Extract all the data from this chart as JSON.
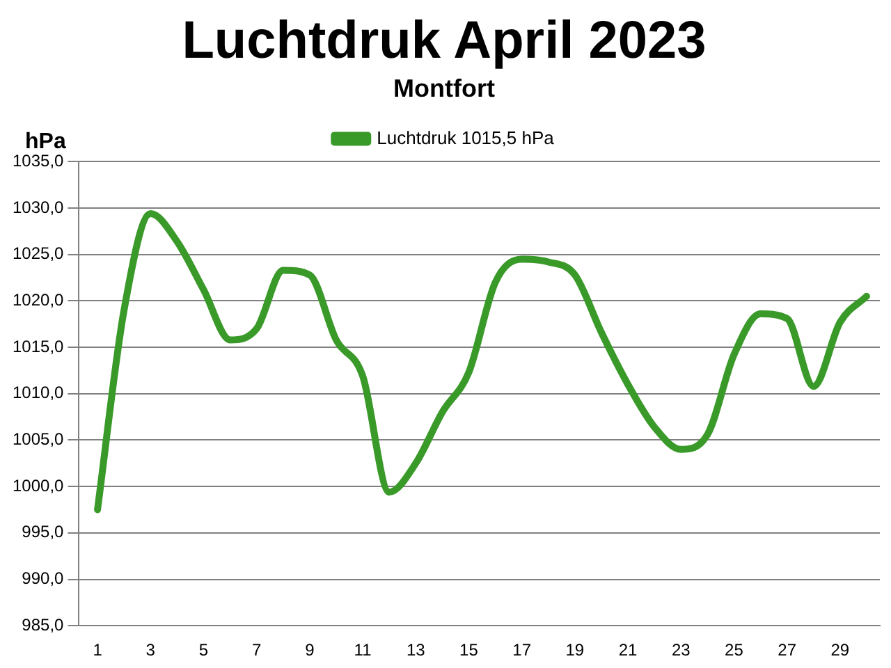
{
  "chart_data": {
    "type": "line",
    "title": "Luchtdruk April 2023",
    "subtitle": "Montfort",
    "ylabel": "hPa",
    "x": [
      1,
      2,
      3,
      4,
      5,
      6,
      7,
      8,
      9,
      10,
      11,
      12,
      13,
      14,
      15,
      16,
      17,
      18,
      19,
      20,
      21,
      22,
      23,
      24,
      25,
      26,
      27,
      28,
      29,
      30
    ],
    "xlim": [
      0.3,
      30.5
    ],
    "xticks": [
      1,
      3,
      5,
      7,
      9,
      11,
      13,
      15,
      17,
      19,
      21,
      23,
      25,
      27,
      29
    ],
    "series": [
      {
        "name": "Luchtdruk 1015,5 hPa",
        "color": "#3a9a29",
        "values": [
          997.5,
          1019,
          1029.4,
          1026.4,
          1021.2,
          1015.8,
          1017,
          1023.3,
          1022.8,
          1015.8,
          1011.9,
          999.4,
          1002.5,
          1008,
          1012.3,
          1022,
          1024.5,
          1024.2,
          1022.8,
          1016.6,
          1011,
          1006.4,
          1004,
          1005.6,
          1014.2,
          1018.6,
          1018.1,
          1010.8,
          1017.7,
          1020.5
        ]
      }
    ],
    "ylim": [
      985,
      1035
    ],
    "yticks": [
      {
        "value": 985,
        "label": "985,0"
      },
      {
        "value": 990,
        "label": "990,0"
      },
      {
        "value": 995,
        "label": "995,0"
      },
      {
        "value": 1000,
        "label": "1000,0"
      },
      {
        "value": 1005,
        "label": "1005,0"
      },
      {
        "value": 1010,
        "label": "1010,0"
      },
      {
        "value": 1015,
        "label": "1015,0"
      },
      {
        "value": 1020,
        "label": "1020,0"
      },
      {
        "value": 1025,
        "label": "1025,0"
      },
      {
        "value": 1030,
        "label": "1030,0"
      },
      {
        "value": 1035,
        "label": "1035,0"
      }
    ],
    "grid": "y",
    "legend": "top",
    "marker": "none",
    "line_style": "solid"
  }
}
